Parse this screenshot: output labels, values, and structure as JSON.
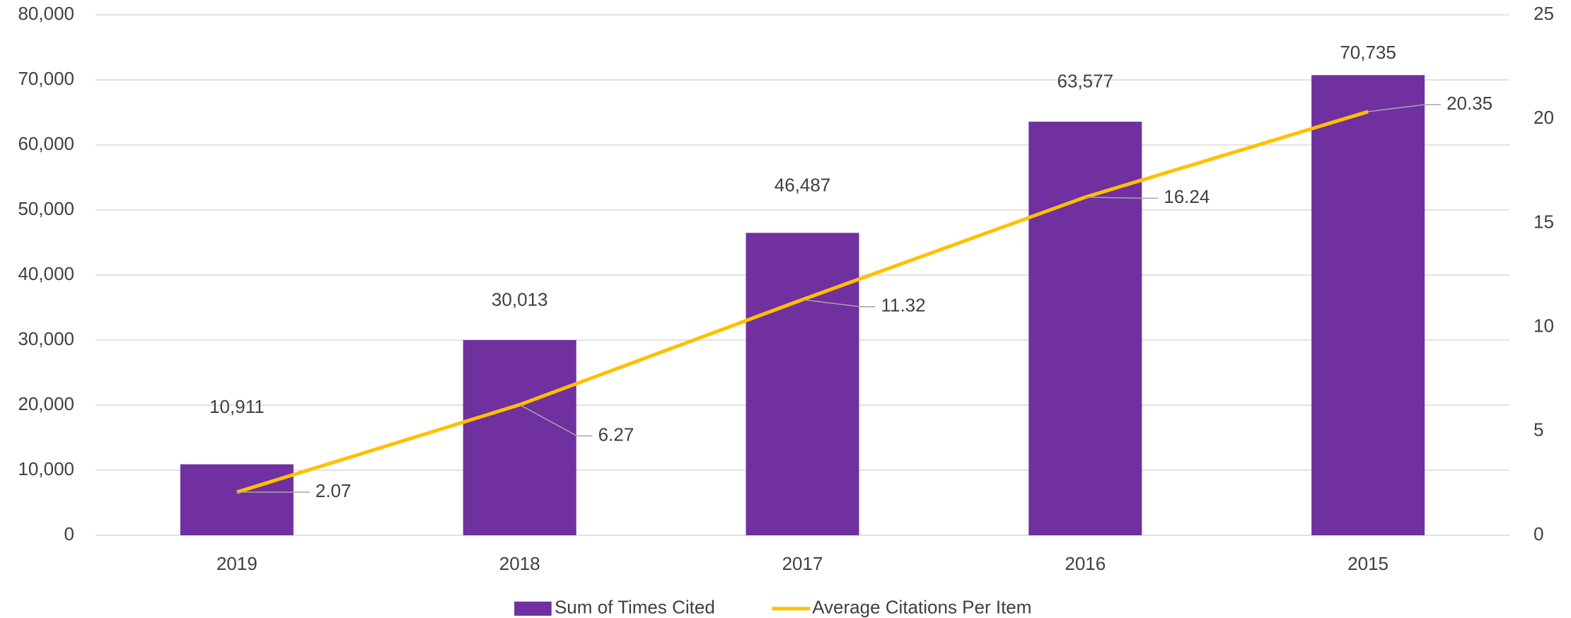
{
  "chart_data": {
    "type": "bar",
    "categories": [
      "2019",
      "2018",
      "2017",
      "2016",
      "2015"
    ],
    "series": [
      {
        "name": "Sum of Times Cited",
        "type": "bar",
        "color": "#7030a0",
        "axis": "y",
        "values": [
          10911,
          30013,
          46487,
          63577,
          70735
        ],
        "value_labels": [
          "10,911",
          "30,013",
          "46,487",
          "63,577",
          "70,735"
        ]
      },
      {
        "name": "Average Citations Per Item",
        "type": "line",
        "color": "#ffc000",
        "axis": "y2",
        "values": [
          2.07,
          6.27,
          11.32,
          16.24,
          20.35
        ]
      }
    ],
    "ylim": [
      0,
      80000
    ],
    "yticks": [
      0,
      {
        "value": 10000,
        "label": "10,000"
      },
      {
        "value": 20000,
        "label": "20,000"
      },
      {
        "value": 30000,
        "label": "30,000"
      },
      {
        "value": 40000,
        "label": "40,000"
      },
      {
        "value": 50000,
        "label": "50,000"
      },
      {
        "value": 60000,
        "label": "60,000"
      },
      {
        "value": 70000,
        "label": "70,000"
      },
      {
        "value": 80000,
        "label": "80,000"
      }
    ],
    "y2lim": [
      0,
      25
    ],
    "y2ticks": [
      0,
      5,
      10,
      15,
      20,
      25
    ],
    "grid": true,
    "legend": "bottom"
  }
}
